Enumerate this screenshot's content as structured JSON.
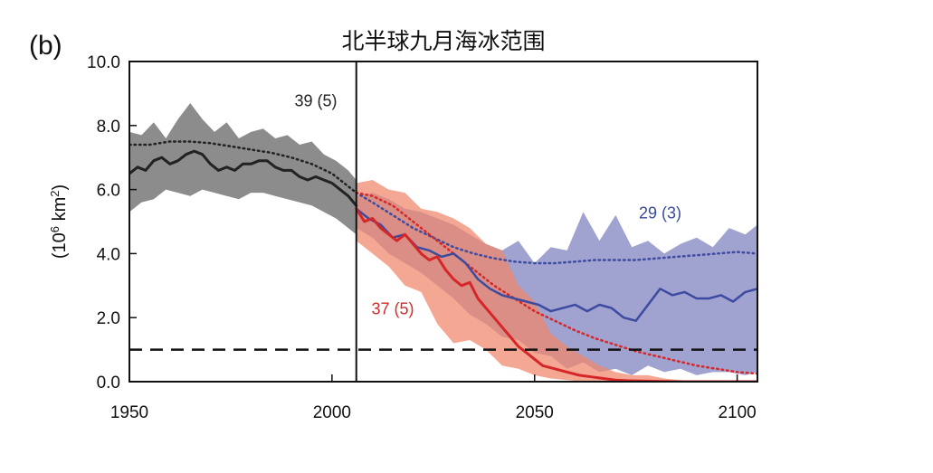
{
  "chart_data": {
    "type": "line",
    "panel_label": "(b)",
    "title": "北半球九月海冰范围",
    "xlabel": "",
    "ylabel_base": "(10",
    "ylabel_sup1": "6",
    "ylabel_mid": " km",
    "ylabel_sup2": "2",
    "ylabel_end": ")",
    "xlim": [
      1950,
      2105
    ],
    "ylim": [
      0,
      10
    ],
    "xticks": [
      "1950",
      "2000",
      "2050",
      "2100"
    ],
    "yticks": [
      "0.0",
      "2.0",
      "4.0",
      "6.0",
      "8.0",
      "10.0"
    ],
    "divider_year": 2006,
    "threshold": 1.0,
    "annotations": [
      {
        "text": "39 (5)",
        "x": 1996,
        "y": 8.6,
        "color": "#222222"
      },
      {
        "text": "29 (3)",
        "x": 2081,
        "y": 5.1,
        "color": "#3a4a9a"
      },
      {
        "text": "37 (5)",
        "x": 2015,
        "y": 2.1,
        "color": "#d42a2a"
      }
    ],
    "colors": {
      "historical": "#222222",
      "historical_band": "#8c8c8c",
      "low": "#3c4ba0",
      "low_band": "#8f92c8",
      "high": "#d62728",
      "high_band": "#f0876a"
    },
    "series": [
      {
        "id": "historical-mean",
        "x": [
          1950,
          1952,
          1954,
          1956,
          1958,
          1960,
          1962,
          1964,
          1966,
          1968,
          1970,
          1972,
          1974,
          1976,
          1978,
          1980,
          1982,
          1984,
          1986,
          1988,
          1990,
          1992,
          1994,
          1996,
          1998,
          2000,
          2002,
          2004,
          2006
        ],
        "y": [
          6.5,
          6.7,
          6.6,
          6.9,
          7.0,
          6.8,
          6.9,
          7.1,
          7.2,
          7.1,
          6.8,
          6.6,
          6.7,
          6.6,
          6.8,
          6.8,
          6.9,
          6.9,
          6.7,
          6.6,
          6.6,
          6.4,
          6.3,
          6.4,
          6.3,
          6.2,
          6.0,
          5.8,
          5.5
        ]
      },
      {
        "id": "historical-dotted",
        "x": [
          1950,
          1955,
          1960,
          1965,
          1970,
          1975,
          1980,
          1985,
          1990,
          1995,
          2000,
          2003,
          2006
        ],
        "y": [
          7.4,
          7.4,
          7.5,
          7.5,
          7.45,
          7.35,
          7.25,
          7.15,
          7.0,
          6.8,
          6.5,
          6.2,
          5.9
        ]
      },
      {
        "id": "historical-band-upper",
        "x": [
          1950,
          1953,
          1956,
          1959,
          1962,
          1965,
          1968,
          1971,
          1974,
          1977,
          1980,
          1983,
          1986,
          1989,
          1992,
          1995,
          1998,
          2001,
          2004,
          2006
        ],
        "y": [
          7.8,
          7.7,
          8.1,
          7.6,
          8.2,
          8.7,
          8.2,
          7.8,
          8.1,
          7.6,
          7.8,
          7.9,
          7.6,
          7.7,
          7.4,
          7.5,
          7.1,
          6.9,
          6.6,
          6.3
        ]
      },
      {
        "id": "historical-band-lower",
        "x": [
          1950,
          1953,
          1956,
          1959,
          1962,
          1965,
          1968,
          1971,
          1974,
          1977,
          1980,
          1983,
          1986,
          1989,
          1992,
          1995,
          1998,
          2001,
          2004,
          2006
        ],
        "y": [
          5.3,
          5.6,
          5.7,
          6.0,
          5.9,
          5.8,
          6.0,
          5.9,
          5.8,
          5.7,
          5.9,
          5.9,
          5.8,
          5.7,
          5.6,
          5.5,
          5.3,
          5.1,
          4.8,
          4.6
        ]
      },
      {
        "id": "low-emission-mean",
        "x": [
          2006,
          2009,
          2012,
          2015,
          2018,
          2021,
          2024,
          2027,
          2030,
          2033,
          2036,
          2039,
          2042,
          2045,
          2048,
          2051,
          2054,
          2057,
          2060,
          2063,
          2066,
          2069,
          2072,
          2075,
          2078,
          2081,
          2084,
          2087,
          2090,
          2093,
          2096,
          2099,
          2102,
          2105
        ],
        "y": [
          5.4,
          5.1,
          4.9,
          4.5,
          4.6,
          4.2,
          4.1,
          3.9,
          4.0,
          3.7,
          3.2,
          2.9,
          2.7,
          2.6,
          2.5,
          2.4,
          2.2,
          2.3,
          2.4,
          2.2,
          2.4,
          2.3,
          2.0,
          1.9,
          2.4,
          2.9,
          2.7,
          2.8,
          2.6,
          2.6,
          2.7,
          2.5,
          2.8,
          2.9
        ]
      },
      {
        "id": "low-emission-dotted",
        "x": [
          2006,
          2010,
          2015,
          2020,
          2025,
          2030,
          2035,
          2040,
          2045,
          2050,
          2055,
          2060,
          2065,
          2070,
          2075,
          2080,
          2085,
          2090,
          2095,
          2100,
          2105
        ],
        "y": [
          5.9,
          5.6,
          5.2,
          4.8,
          4.5,
          4.2,
          4.0,
          3.85,
          3.75,
          3.7,
          3.7,
          3.75,
          3.8,
          3.8,
          3.8,
          3.85,
          3.9,
          3.95,
          4.0,
          4.05,
          4.0
        ]
      },
      {
        "id": "low-emission-band-upper",
        "x": [
          2006,
          2010,
          2014,
          2018,
          2022,
          2026,
          2030,
          2034,
          2038,
          2042,
          2046,
          2050,
          2054,
          2058,
          2062,
          2066,
          2070,
          2074,
          2078,
          2082,
          2086,
          2090,
          2094,
          2098,
          2102,
          2105
        ],
        "y": [
          5.8,
          5.9,
          5.7,
          5.4,
          5.3,
          5.1,
          4.9,
          4.6,
          4.3,
          4.1,
          4.4,
          3.7,
          4.2,
          4.1,
          5.3,
          4.4,
          5.2,
          4.2,
          4.4,
          4.0,
          4.3,
          4.5,
          4.2,
          4.8,
          4.6,
          4.9
        ]
      },
      {
        "id": "low-emission-band-lower",
        "x": [
          2006,
          2010,
          2014,
          2018,
          2022,
          2026,
          2030,
          2034,
          2038,
          2042,
          2046,
          2050,
          2054,
          2058,
          2062,
          2066,
          2070,
          2074,
          2078,
          2082,
          2086,
          2090,
          2094,
          2098,
          2102,
          2105
        ],
        "y": [
          4.8,
          4.5,
          4.0,
          3.7,
          3.4,
          3.0,
          2.6,
          2.1,
          1.8,
          1.4,
          1.3,
          0.9,
          0.8,
          0.4,
          0.6,
          0.3,
          0.4,
          0.2,
          0.5,
          0.3,
          0.4,
          0.2,
          0.3,
          0.3,
          0.2,
          0.3
        ]
      },
      {
        "id": "high-emission-mean",
        "x": [
          2006,
          2008,
          2010,
          2012,
          2014,
          2016,
          2018,
          2020,
          2022,
          2024,
          2026,
          2028,
          2030,
          2032,
          2034,
          2036,
          2038,
          2040,
          2042,
          2044,
          2046,
          2048,
          2050,
          2052,
          2055,
          2058,
          2061,
          2064,
          2067,
          2070,
          2073,
          2076,
          2080,
          2085,
          2090,
          2095,
          2100,
          2105
        ],
        "y": [
          5.4,
          5.0,
          5.1,
          4.8,
          4.6,
          4.4,
          4.6,
          4.3,
          4.0,
          3.8,
          3.9,
          3.5,
          3.2,
          3.0,
          3.1,
          2.6,
          2.3,
          2.0,
          1.7,
          1.4,
          1.1,
          0.9,
          0.7,
          0.5,
          0.4,
          0.3,
          0.2,
          0.15,
          0.1,
          0.05,
          0.03,
          0.02,
          0.01,
          0.0,
          0.0,
          0.0,
          0.0,
          0.0
        ]
      },
      {
        "id": "high-emission-dotted",
        "x": [
          2006,
          2010,
          2015,
          2020,
          2025,
          2030,
          2035,
          2040,
          2045,
          2050,
          2055,
          2060,
          2065,
          2070,
          2075,
          2080,
          2085,
          2090,
          2095,
          2100,
          2105
        ],
        "y": [
          5.9,
          5.8,
          5.5,
          5.0,
          4.5,
          4.0,
          3.5,
          3.0,
          2.6,
          2.2,
          1.9,
          1.6,
          1.35,
          1.15,
          0.95,
          0.8,
          0.65,
          0.5,
          0.4,
          0.3,
          0.25
        ]
      },
      {
        "id": "high-emission-band-upper",
        "x": [
          2006,
          2010,
          2014,
          2018,
          2022,
          2026,
          2030,
          2034,
          2038,
          2042,
          2046,
          2050,
          2054,
          2058,
          2062,
          2066,
          2070,
          2074,
          2078,
          2082,
          2086,
          2090
        ],
        "y": [
          6.2,
          6.3,
          6.0,
          5.9,
          5.4,
          5.3,
          5.1,
          4.8,
          4.3,
          4.1,
          3.0,
          2.5,
          1.5,
          1.1,
          0.8,
          0.5,
          0.3,
          0.2,
          0.2,
          0.1,
          0.05,
          0.0
        ]
      },
      {
        "id": "high-emission-band-lower",
        "x": [
          2006,
          2010,
          2014,
          2018,
          2022,
          2026,
          2030,
          2034,
          2038,
          2042,
          2046,
          2050,
          2054,
          2058,
          2062,
          2066,
          2070,
          2074,
          2078,
          2082,
          2086,
          2090
        ],
        "y": [
          4.4,
          4.0,
          3.6,
          3.0,
          2.8,
          1.8,
          1.2,
          1.3,
          1.0,
          0.5,
          0.4,
          0.2,
          0.1,
          0.05,
          0.0,
          0.0,
          0.0,
          0.0,
          0.0,
          0.0,
          0.0,
          0.0
        ]
      }
    ]
  }
}
